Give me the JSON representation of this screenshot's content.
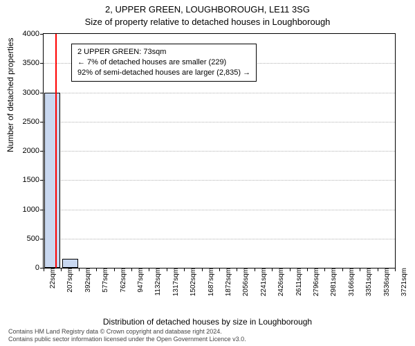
{
  "titles": {
    "line1": "2, UPPER GREEN, LOUGHBOROUGH, LE11 3SG",
    "line2": "Size of property relative to detached houses in Loughborough"
  },
  "axes": {
    "ylabel": "Number of detached properties",
    "xlabel": "Distribution of detached houses by size in Loughborough",
    "ymax": 4000,
    "ytick_step": 500,
    "yticks": [
      0,
      500,
      1000,
      1500,
      2000,
      2500,
      3000,
      3500,
      4000
    ],
    "xticks": [
      "22sqm",
      "207sqm",
      "392sqm",
      "577sqm",
      "762sqm",
      "947sqm",
      "1132sqm",
      "1317sqm",
      "1502sqm",
      "1687sqm",
      "1872sqm",
      "2056sqm",
      "2241sqm",
      "2426sqm",
      "2611sqm",
      "2796sqm",
      "2981sqm",
      "3166sqm",
      "3351sqm",
      "3536sqm",
      "3721sqm"
    ]
  },
  "chart": {
    "type": "histogram",
    "bar_color": "#c9d8f0",
    "bar_border": "#000000",
    "grid_color": "#b0b0b0",
    "background": "#ffffff",
    "marker_color": "#ff0000",
    "annotation_bg": "#ffffff",
    "annotation_border": "#000000",
    "label_fontsize": 12,
    "tick_fontsize": 11,
    "xtick_fontsize": 10,
    "bars": [
      {
        "slot": 0,
        "value": 3000
      },
      {
        "slot": 1,
        "value": 150
      }
    ],
    "marker_slot": 0.15
  },
  "annotation": {
    "line1": "2 UPPER GREEN: 73sqm",
    "line2": "← 7% of detached houses are smaller (229)",
    "line3": "92% of semi-detached houses are larger (2,835) →"
  },
  "footer": {
    "line1": "Contains HM Land Registry data © Crown copyright and database right 2024.",
    "line2": "Contains public sector information licensed under the Open Government Licence v3.0."
  }
}
